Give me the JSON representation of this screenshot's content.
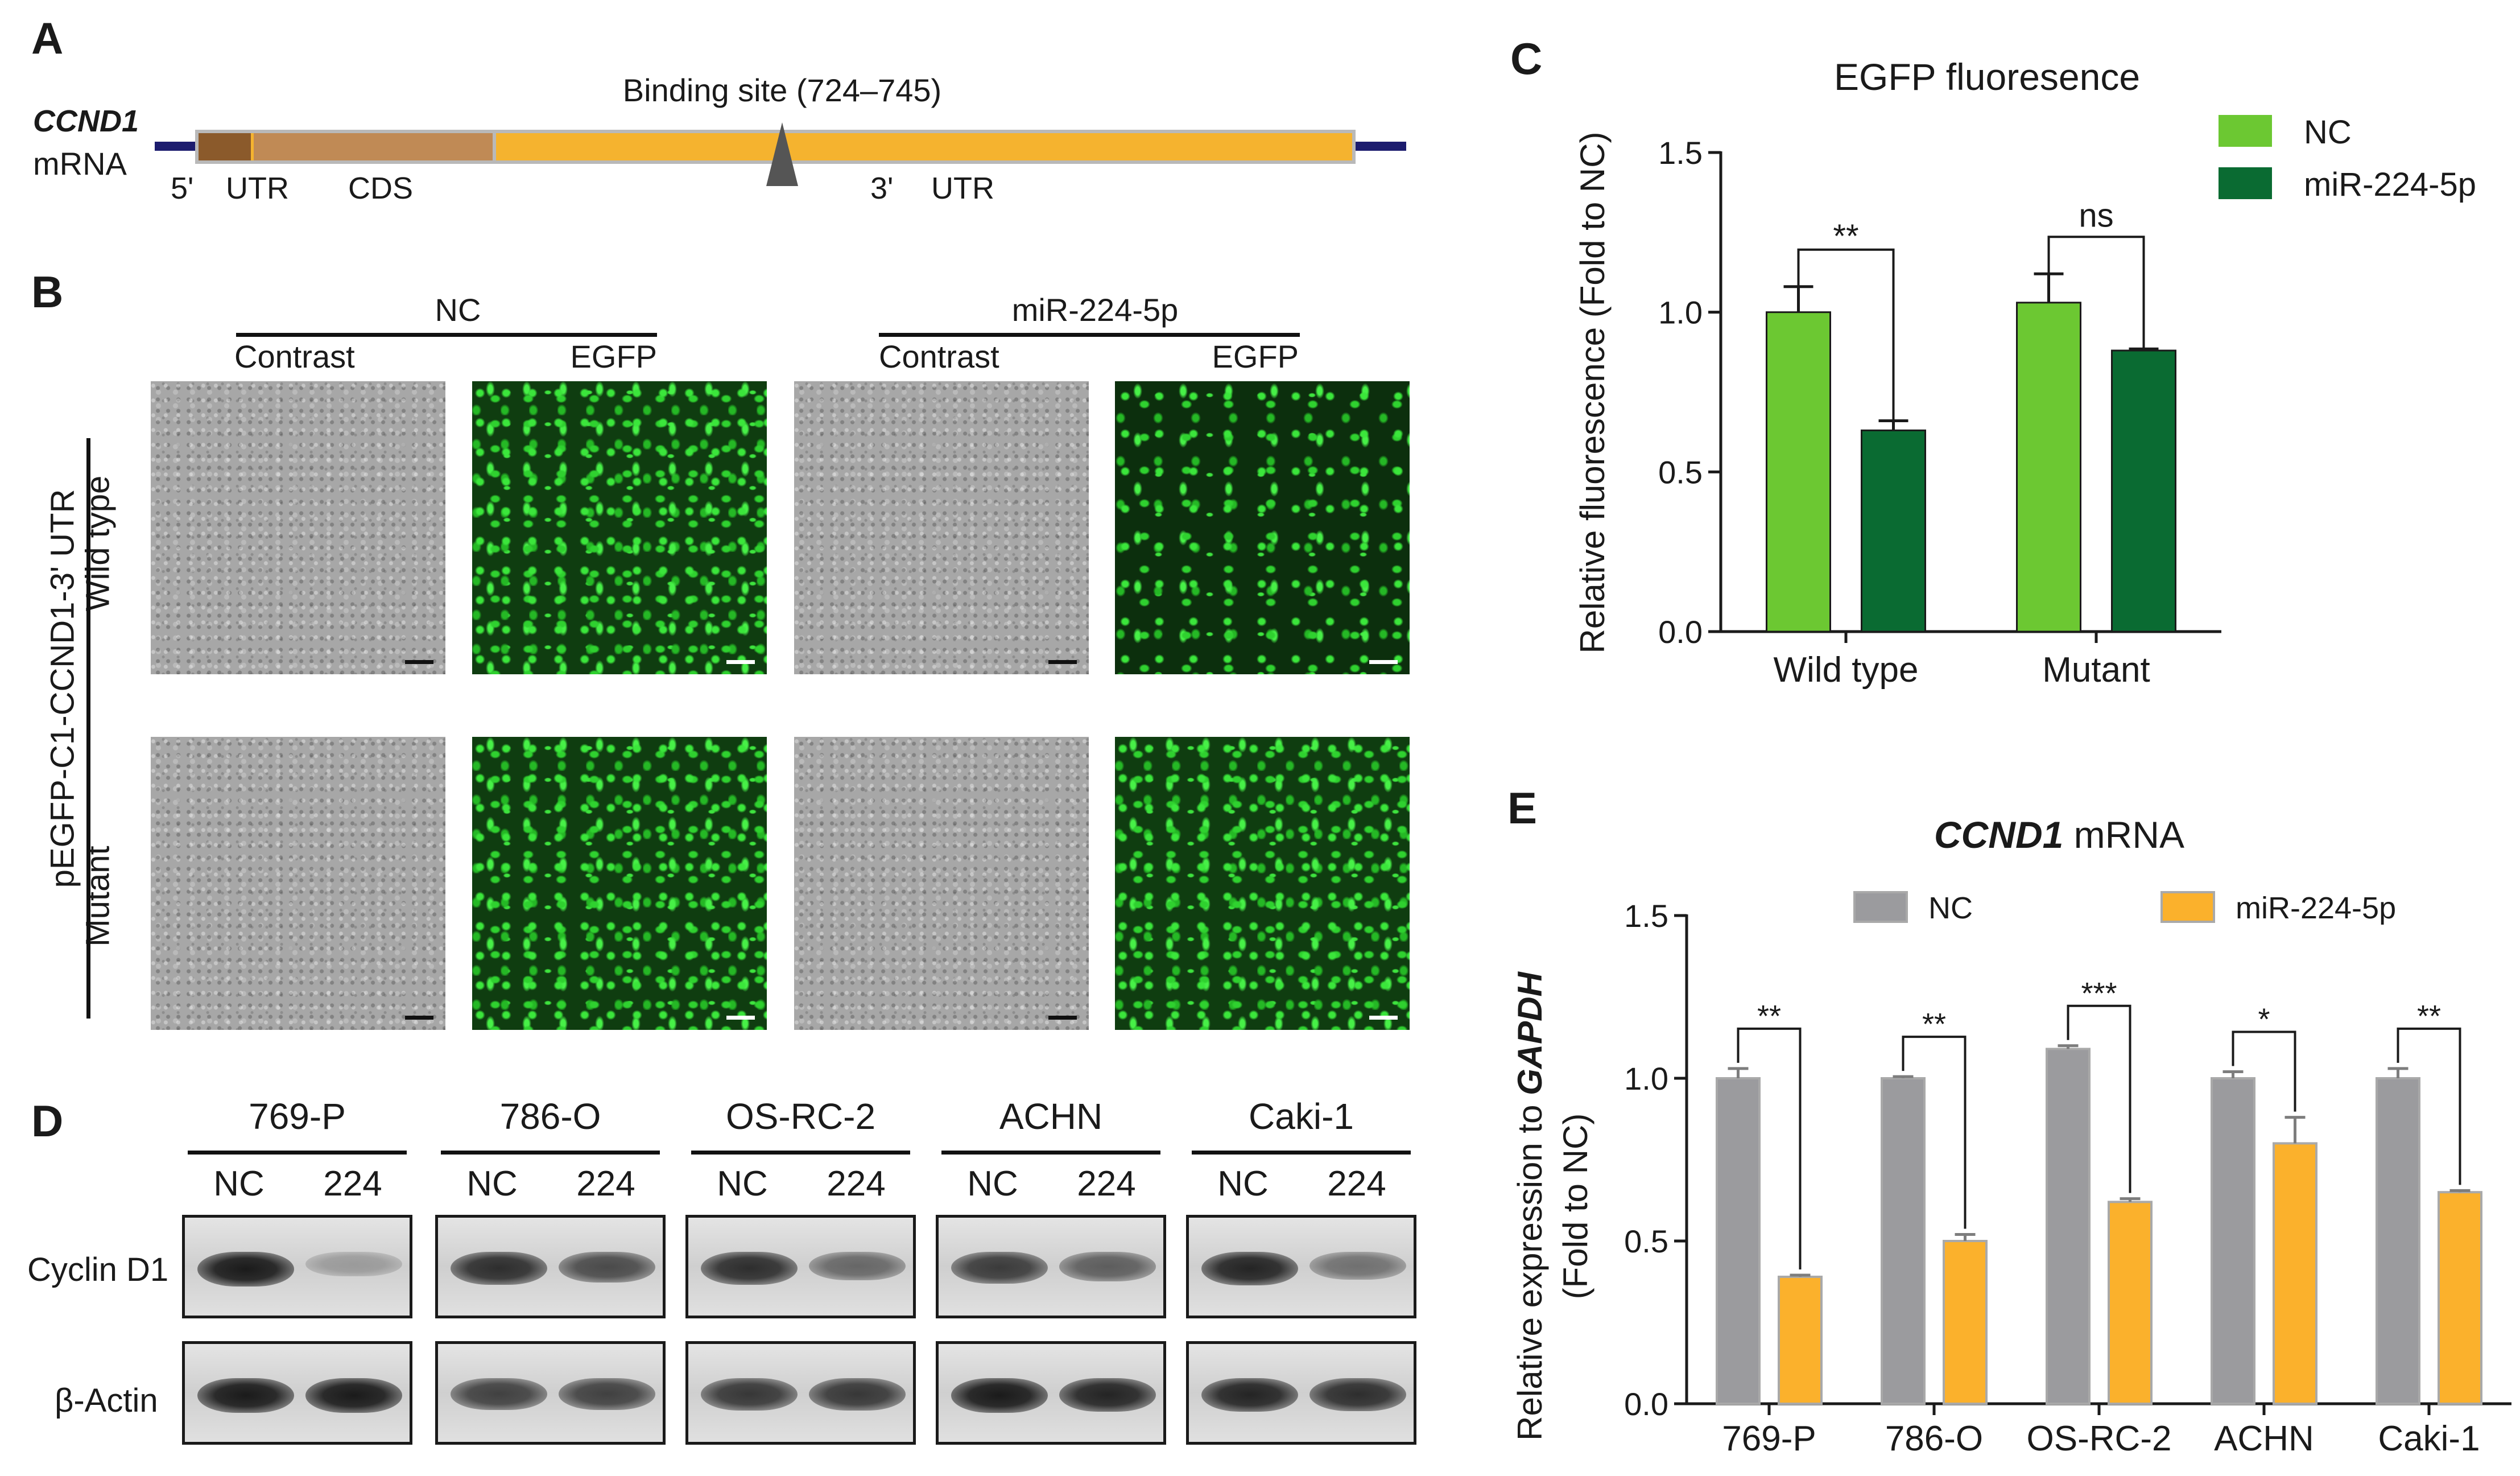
{
  "panels": {
    "a": "A",
    "b": "B",
    "c": "C",
    "d": "D",
    "e": "E"
  },
  "panel_a": {
    "gene": "CCND1",
    "mrna": "mRNA",
    "binding_site": "Binding site (724–745)",
    "labels": {
      "five": "5'",
      "utr": "UTR",
      "cds": "CDS",
      "three": "3'",
      "three_utr": "UTR"
    },
    "colors": {
      "utr5": "#8B5A2B",
      "cds": "#C08A55",
      "utr3": "#F5B32F",
      "line": "#1c1c6e"
    }
  },
  "panel_b": {
    "groups": [
      "NC",
      "miR-224-5p"
    ],
    "columns": [
      "Contrast",
      "EGFP",
      "Contrast",
      "EGFP"
    ],
    "rows": [
      "Wild type",
      "Mutant"
    ],
    "construct": "pEGFP-C1-CCND1-3'  UTR"
  },
  "panel_d": {
    "cell_lines": [
      "769-P",
      "786-O",
      "OS-RC-2",
      "ACHN",
      "Caki-1"
    ],
    "lane_labels": [
      "NC",
      "224"
    ],
    "proteins": [
      "Cyclin D1",
      "β-Actin"
    ]
  },
  "chart_data": [
    {
      "id": "C",
      "type": "bar",
      "title": "EGFP fluoresence",
      "ylabel": "Relative fluorescence (Fold to NC)",
      "xlabel": "",
      "ylim": [
        0,
        1.5
      ],
      "yticks": [
        "0.0",
        "0.5",
        "1.0",
        "1.5"
      ],
      "ytick_values": [
        0,
        0.5,
        1.0,
        1.5
      ],
      "categories": [
        "Wild type",
        "Mutant"
      ],
      "series": [
        {
          "name": "NC",
          "color": "#6CC832",
          "values": [
            1.0,
            1.03
          ],
          "errors": [
            0.08,
            0.09
          ]
        },
        {
          "name": "miR-224-5p",
          "color": "#0A6B32",
          "values": [
            0.63,
            0.88
          ],
          "errors": [
            0.03,
            0.005
          ]
        }
      ],
      "significance": [
        "**",
        "ns"
      ],
      "legend": "top-right",
      "grid": false
    },
    {
      "id": "E",
      "type": "bar",
      "title": "CCND1 mRNA",
      "title_italic": "CCND1",
      "title_rest": " mRNA",
      "ylabel": "Relative expression to GAPDH (Fold to NC)",
      "ylabel_line1": "Relative expression to ",
      "ylabel_line1_italic": "GAPDH",
      "ylabel_line2": "(Fold to NC)",
      "xlabel": "",
      "ylim": [
        0,
        1.5
      ],
      "yticks": [
        "0.0",
        "0.5",
        "1.0",
        "1.5"
      ],
      "ytick_values": [
        0,
        0.5,
        1.0,
        1.5
      ],
      "categories": [
        "769-P",
        "786-O",
        "OS-RC-2",
        "ACHN",
        "Caki-1"
      ],
      "series": [
        {
          "name": "NC",
          "color": "#9B9B9E",
          "values": [
            1.0,
            1.0,
            1.09,
            1.0,
            1.0
          ],
          "errors": [
            0.03,
            0.005,
            0.01,
            0.02,
            0.03
          ]
        },
        {
          "name": "miR-224-5p",
          "color": "#FBB12C",
          "values": [
            0.39,
            0.5,
            0.62,
            0.8,
            0.65
          ],
          "errors": [
            0.005,
            0.02,
            0.01,
            0.08,
            0.005
          ]
        }
      ],
      "significance": [
        "**",
        "**",
        "***",
        "*",
        "**"
      ],
      "legend": "top",
      "grid": false
    }
  ]
}
